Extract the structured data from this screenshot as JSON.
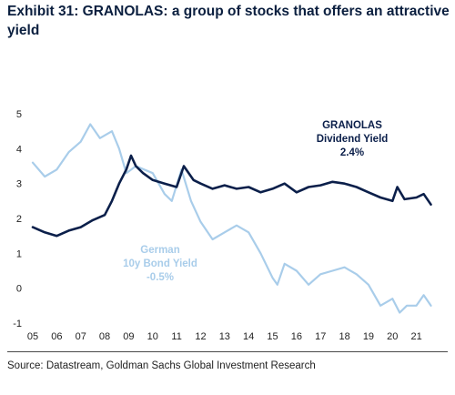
{
  "title": "Exhibit 31: GRANOLAS: a group of stocks that offers an attractive yield",
  "source": "Source: Datastream, Goldman Sachs Global Investment Research",
  "colors": {
    "granolas": "#0b1f4a",
    "bund": "#a9cdea",
    "text": "#0b1f3f"
  },
  "annotations": {
    "granolas": [
      "GRANOLAS",
      "Dividend Yield",
      "2.4%"
    ],
    "bund": [
      "German",
      "10y Bond Yield",
      "-0.5%"
    ]
  },
  "chart_data": {
    "type": "line",
    "xlim": [
      2005,
      2022
    ],
    "ylim": [
      -1,
      5
    ],
    "x_ticks": [
      2005,
      2006,
      2007,
      2008,
      2009,
      2010,
      2011,
      2012,
      2013,
      2014,
      2015,
      2016,
      2017,
      2018,
      2019,
      2020,
      2021
    ],
    "x_tick_labels": [
      "05",
      "06",
      "07",
      "08",
      "09",
      "10",
      "11",
      "12",
      "13",
      "14",
      "15",
      "16",
      "17",
      "18",
      "19",
      "20",
      "21"
    ],
    "y_ticks": [
      -1,
      0,
      1,
      2,
      3,
      4,
      5
    ],
    "y_tick_labels": [
      "-1",
      "0",
      "1",
      "2",
      "3",
      "4",
      "5"
    ],
    "grid": false,
    "series": [
      {
        "key": "granolas",
        "x": [
          2005.0,
          2005.5,
          2006.0,
          2006.5,
          2007.0,
          2007.5,
          2008.0,
          2008.3,
          2008.6,
          2008.9,
          2009.1,
          2009.3,
          2009.6,
          2010.0,
          2010.5,
          2011.0,
          2011.3,
          2011.7,
          2012.0,
          2012.5,
          2013.0,
          2013.5,
          2014.0,
          2014.5,
          2015.0,
          2015.5,
          2016.0,
          2016.5,
          2017.0,
          2017.5,
          2018.0,
          2018.5,
          2019.0,
          2019.5,
          2020.0,
          2020.2,
          2020.5,
          2021.0,
          2021.3,
          2021.6
        ],
        "y": [
          1.75,
          1.6,
          1.5,
          1.65,
          1.75,
          1.95,
          2.1,
          2.5,
          3.0,
          3.4,
          3.8,
          3.5,
          3.3,
          3.1,
          3.0,
          2.9,
          3.5,
          3.1,
          3.0,
          2.85,
          2.95,
          2.85,
          2.9,
          2.75,
          2.85,
          3.0,
          2.75,
          2.9,
          2.95,
          3.05,
          3.0,
          2.9,
          2.75,
          2.6,
          2.5,
          2.9,
          2.55,
          2.6,
          2.7,
          2.4
        ]
      },
      {
        "key": "bund",
        "x": [
          2005.0,
          2005.5,
          2006.0,
          2006.5,
          2007.0,
          2007.4,
          2007.8,
          2008.3,
          2008.6,
          2008.9,
          2009.3,
          2010.0,
          2010.5,
          2010.8,
          2011.2,
          2011.6,
          2012.0,
          2012.5,
          2013.0,
          2013.5,
          2014.0,
          2014.5,
          2015.0,
          2015.2,
          2015.5,
          2016.0,
          2016.5,
          2017.0,
          2017.5,
          2018.0,
          2018.5,
          2019.0,
          2019.5,
          2020.0,
          2020.3,
          2020.6,
          2021.0,
          2021.3,
          2021.6
        ],
        "y": [
          3.6,
          3.2,
          3.4,
          3.9,
          4.2,
          4.7,
          4.3,
          4.5,
          4.0,
          3.3,
          3.5,
          3.3,
          2.7,
          2.5,
          3.4,
          2.5,
          1.9,
          1.4,
          1.6,
          1.8,
          1.6,
          1.0,
          0.3,
          0.1,
          0.7,
          0.5,
          0.1,
          0.4,
          0.5,
          0.6,
          0.4,
          0.1,
          -0.5,
          -0.3,
          -0.7,
          -0.5,
          -0.5,
          -0.2,
          -0.5
        ]
      }
    ]
  }
}
